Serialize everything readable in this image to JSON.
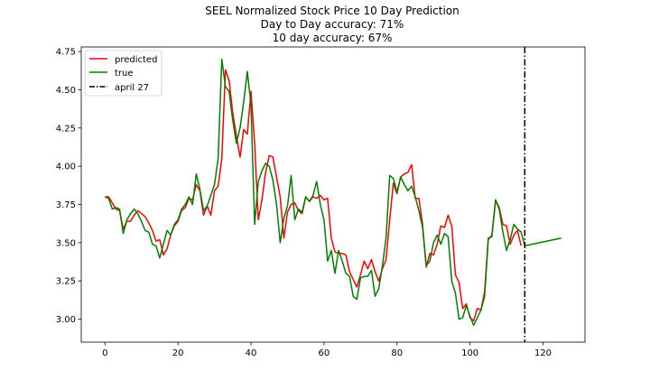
{
  "chart_data": {
    "type": "line",
    "title": [
      "SEEL Normalized Stock Price 10 Day Prediction",
      "Day to Day accuracy: 71%",
      "10 day accuracy: 67%"
    ],
    "xlabel": "",
    "ylabel": "",
    "xlim": [
      -6.5,
      131.5
    ],
    "ylim": [
      2.85,
      4.78
    ],
    "xticks": [
      0,
      20,
      40,
      60,
      80,
      100,
      120
    ],
    "yticks": [
      3.0,
      3.25,
      3.5,
      3.75,
      4.0,
      4.25,
      4.5,
      4.75
    ],
    "xtick_labels": [
      "0",
      "20",
      "40",
      "60",
      "80",
      "100",
      "120"
    ],
    "ytick_labels": [
      "3.00",
      "3.25",
      "3.50",
      "3.75",
      "4.00",
      "4.25",
      "4.50",
      "4.75"
    ],
    "grid": false,
    "legend_position": "top-left",
    "series": [
      {
        "name": "predicted",
        "color": "#ff0000",
        "x_start": 0,
        "values": [
          3.8,
          3.8,
          3.76,
          3.72,
          3.71,
          3.59,
          3.64,
          3.64,
          3.68,
          3.71,
          3.69,
          3.67,
          3.63,
          3.58,
          3.51,
          3.52,
          3.42,
          3.46,
          3.55,
          3.61,
          3.64,
          3.71,
          3.73,
          3.79,
          3.78,
          3.88,
          3.84,
          3.68,
          3.74,
          3.68,
          3.84,
          3.87,
          4.05,
          4.63,
          4.56,
          4.35,
          4.2,
          4.06,
          4.24,
          4.21,
          4.49,
          4.15,
          3.65,
          3.78,
          3.96,
          4.07,
          4.06,
          3.93,
          3.8,
          3.53,
          3.7,
          3.75,
          3.76,
          3.71,
          3.69,
          3.8,
          3.77,
          3.8,
          3.79,
          3.81,
          3.78,
          3.79,
          3.53,
          3.44,
          3.43,
          3.43,
          3.42,
          3.31,
          3.26,
          3.21,
          3.29,
          3.38,
          3.33,
          3.39,
          3.31,
          3.25,
          3.33,
          3.39,
          3.65,
          3.89,
          3.82,
          3.93,
          3.95,
          3.96,
          4.01,
          3.79,
          3.79,
          3.62,
          3.34,
          3.43,
          3.42,
          3.49,
          3.61,
          3.6,
          3.68,
          3.61,
          3.29,
          3.24,
          3.07,
          3.1,
          3.01,
          2.99,
          3.07,
          3.06,
          3.18,
          3.53,
          3.54,
          3.78,
          3.73,
          3.62,
          3.61,
          3.49,
          3.55,
          3.58,
          3.48
        ],
        "projection": []
      },
      {
        "name": "true",
        "color": "#008000",
        "x_start": 0,
        "values": [
          3.8,
          3.79,
          3.72,
          3.73,
          3.72,
          3.56,
          3.65,
          3.69,
          3.72,
          3.69,
          3.64,
          3.58,
          3.57,
          3.49,
          3.48,
          3.4,
          3.49,
          3.58,
          3.55,
          3.62,
          3.65,
          3.72,
          3.75,
          3.8,
          3.75,
          3.95,
          3.85,
          3.71,
          3.74,
          3.81,
          3.88,
          4.05,
          4.7,
          4.52,
          4.49,
          4.3,
          4.15,
          4.25,
          4.42,
          4.62,
          4.4,
          3.62,
          3.9,
          3.97,
          4.02,
          4.0,
          3.91,
          3.75,
          3.5,
          3.66,
          3.74,
          3.94,
          3.65,
          3.72,
          3.7,
          3.8,
          3.77,
          3.81,
          3.9,
          3.75,
          3.65,
          3.38,
          3.45,
          3.3,
          3.45,
          3.38,
          3.3,
          3.28,
          3.15,
          3.13,
          3.27,
          3.28,
          3.28,
          3.32,
          3.15,
          3.2,
          3.35,
          3.53,
          3.94,
          3.92,
          3.83,
          3.93,
          3.88,
          3.84,
          3.87,
          3.8,
          3.71,
          3.6,
          3.35,
          3.38,
          3.5,
          3.55,
          3.49,
          3.56,
          3.54,
          3.25,
          3.17,
          3.0,
          3.01,
          3.09,
          3.02,
          2.96,
          3.01,
          3.06,
          3.15,
          3.52,
          3.55,
          3.78,
          3.72,
          3.57,
          3.45,
          3.52,
          3.62,
          3.59,
          3.57,
          3.48
        ],
        "projection": [
          [
            115,
            3.48
          ],
          [
            125,
            3.53
          ]
        ]
      }
    ],
    "vline": {
      "name": "april 27",
      "x": 115,
      "color": "#000000",
      "style": "dash-dot"
    }
  }
}
